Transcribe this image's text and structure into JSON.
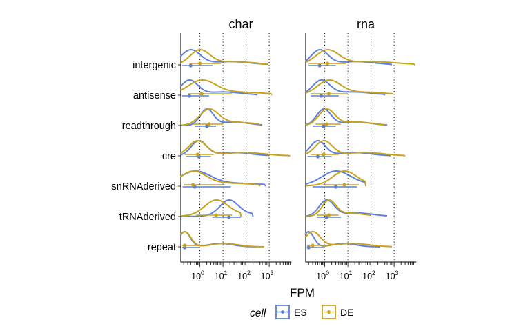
{
  "chart_data": {
    "type": "density-ridgeline",
    "panels": [
      "char",
      "rna"
    ],
    "categories": [
      "intergenic",
      "antisense",
      "readthrough",
      "cre",
      "snRNAderived",
      "tRNAderived",
      "repeat"
    ],
    "xlabel": "FPM",
    "x_scale": "log10",
    "x_tick_labels": [
      "10^0",
      "10^1",
      "10^2",
      "10^3"
    ],
    "x_ticks": [
      1,
      10,
      100,
      1000
    ],
    "xlim": [
      0.15,
      8000
    ],
    "grid": "dotted vertical lines at major ticks",
    "legend": {
      "title": "cell",
      "position": "bottom",
      "items": [
        {
          "label": "ES",
          "color": "#5b7fdc"
        },
        {
          "label": "DE",
          "color": "#c9a21a"
        }
      ]
    },
    "series": [
      {
        "name": "ES",
        "color": "#5b7fdc",
        "panels": {
          "char": {
            "intergenic": {
              "point": 0.4,
              "range": [
                0.17,
                3.5
              ],
              "tail": 900
            },
            "antisense": {
              "point": 0.35,
              "range": [
                0.17,
                2.5
              ],
              "tail": 300
            },
            "readthrough": {
              "point": 2.0,
              "range": [
                0.6,
                5.0
              ],
              "tail": 500
            },
            "cre": {
              "point": 0.9,
              "range": [
                0.25,
                3.0
              ],
              "tail": 1000
            },
            "snRNAderived": {
              "point": 0.6,
              "range": [
                0.18,
                22
              ],
              "tail": 700
            },
            "tRNAderived": {
              "point": 18,
              "range": [
                3.5,
                60
              ],
              "tail": 200
            },
            "repeat": {
              "point": 0.22,
              "range": [
                0.17,
                1.0
              ],
              "tail": 300
            }
          },
          "rna": {
            "intergenic": {
              "point": 0.6,
              "range": [
                0.2,
                3.0
              ],
              "tail": 800
            },
            "antisense": {
              "point": 0.7,
              "range": [
                0.25,
                4.0
              ],
              "tail": 400
            },
            "readthrough": {
              "point": 0.9,
              "range": [
                0.3,
                3.0
              ],
              "tail": 500
            },
            "cre": {
              "point": 0.5,
              "range": [
                0.18,
                2.0
              ],
              "tail": 700
            },
            "snRNAderived": {
              "point": 3.0,
              "range": [
                0.3,
                25
              ],
              "tail": 60
            },
            "tRNAderived": {
              "point": 1.2,
              "range": [
                0.45,
                5.0
              ],
              "tail": 500
            },
            "repeat": {
              "point": 0.2,
              "range": [
                0.17,
                0.9
              ],
              "tail": 250
            }
          }
        }
      },
      {
        "name": "DE",
        "color": "#c9a21a",
        "panels": {
          "char": {
            "intergenic": {
              "point": 1.0,
              "range": [
                0.35,
                8.0
              ],
              "tail": 900
            },
            "antisense": {
              "point": 1.2,
              "range": [
                0.3,
                25
              ],
              "tail": 1300
            },
            "readthrough": {
              "point": 2.5,
              "range": [
                0.5,
                10
              ],
              "tail": 400
            },
            "cre": {
              "point": 0.8,
              "range": [
                0.22,
                4.0
              ],
              "tail": 8000
            },
            "snRNAderived": {
              "point": 0.5,
              "range": [
                0.2,
                12
              ],
              "tail": 400
            },
            "tRNAderived": {
              "point": 5.0,
              "range": [
                0.7,
                25
              ],
              "tail": 60
            },
            "repeat": {
              "point": 0.22,
              "range": [
                0.17,
                1.2
              ],
              "tail": 600
            }
          },
          "rna": {
            "intergenic": {
              "point": 1.3,
              "range": [
                0.2,
                8.0
              ],
              "tail": 8000
            },
            "antisense": {
              "point": 1.5,
              "range": [
                0.25,
                10
              ],
              "tail": 900
            },
            "readthrough": {
              "point": 1.2,
              "range": [
                0.4,
                5.0
              ],
              "tail": 400
            },
            "cre": {
              "point": 0.9,
              "range": [
                0.25,
                4.0
              ],
              "tail": 3000
            },
            "snRNAderived": {
              "point": 7.0,
              "range": [
                0.8,
                30
              ],
              "tail": 60
            },
            "tRNAderived": {
              "point": 1.5,
              "range": [
                0.45,
                4.0
              ],
              "tail": 100
            },
            "repeat": {
              "point": 0.3,
              "range": [
                0.17,
                2.0
              ],
              "tail": 800
            }
          }
        }
      }
    ]
  }
}
